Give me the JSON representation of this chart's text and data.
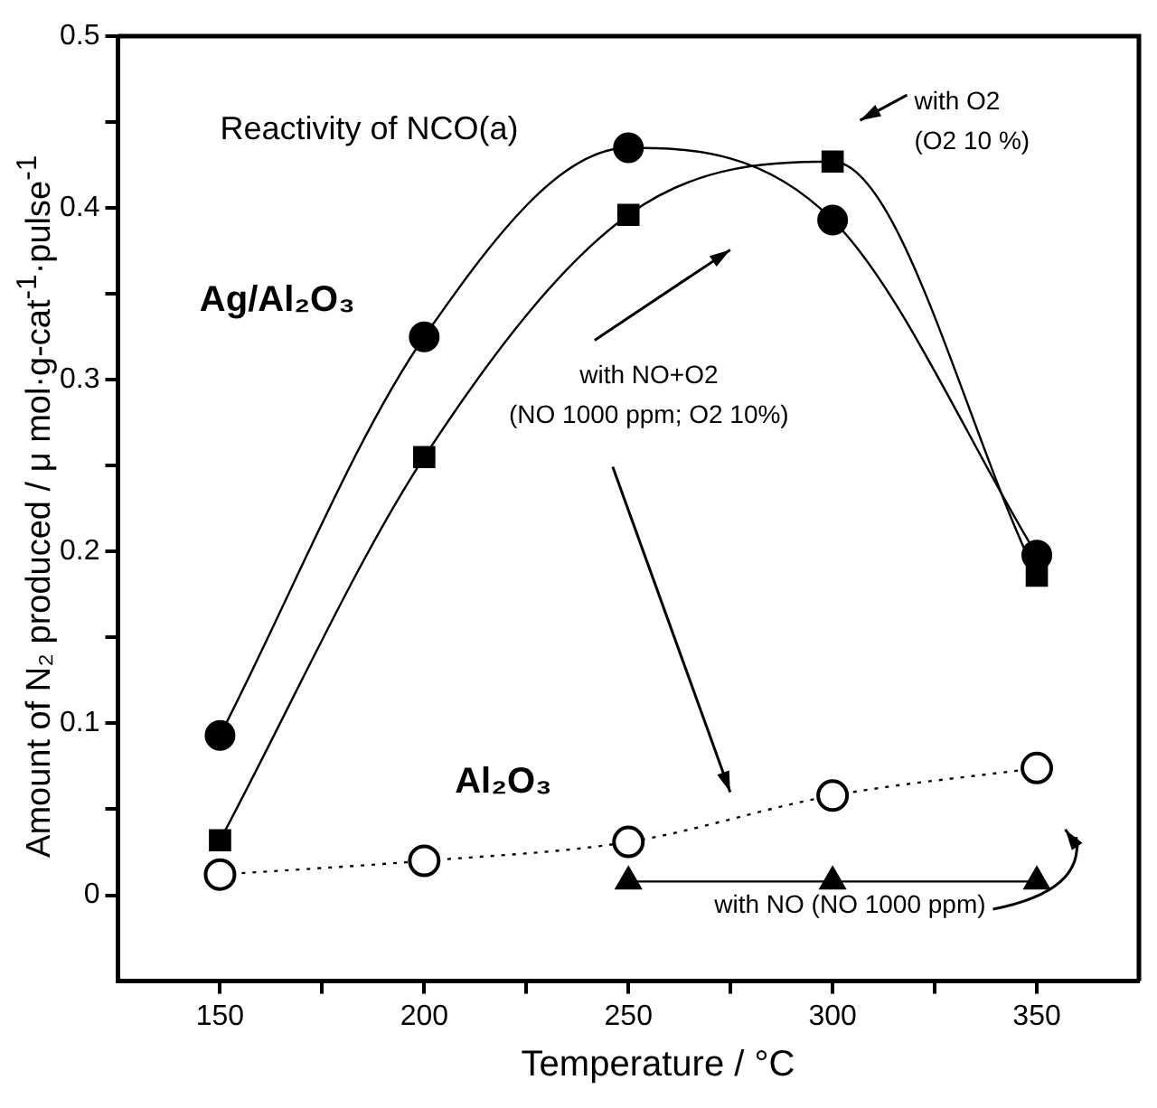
{
  "chart_data": {
    "type": "line",
    "xlabel": "Temperature   / °C",
    "ylabel": "Amount of N₂ produced   / μ mol·g-cat$^{-1}$·pulse$^{-1}$",
    "x": [
      150,
      200,
      250,
      300,
      350
    ],
    "xlim": [
      125,
      375
    ],
    "xticks": [
      150,
      {
        "value": 175,
        "label": null
      },
      200,
      {
        "value": 225,
        "label": null
      },
      250,
      {
        "value": 275,
        "label": null
      },
      300,
      {
        "value": 325,
        "label": null
      },
      350
    ],
    "ylim": [
      -0.05,
      0.5
    ],
    "yticks": [
      0,
      {
        "value": 0.05,
        "label": null
      },
      0.1,
      {
        "value": 0.15,
        "label": null
      },
      0.2,
      {
        "value": 0.25,
        "label": null
      },
      0.3,
      {
        "value": 0.35,
        "label": null
      },
      0.4,
      {
        "value": 0.45,
        "label": null
      },
      0.5
    ],
    "grid": false,
    "legend": false,
    "series": [
      {
        "color": "#000000",
        "marker": "circle",
        "line_style": "solid",
        "values": [
          0.093,
          0.325,
          0.435,
          0.393,
          0.198
        ]
      },
      {
        "color": "#000000",
        "marker": "square",
        "line_style": "solid",
        "values": [
          0.032,
          0.255,
          0.396,
          0.427,
          0.186
        ]
      },
      {
        "color": "#000000",
        "marker": "circle",
        "line_style": "dotted",
        "values": [
          0.012,
          0.02,
          0.031,
          0.058,
          0.074
        ]
      },
      {
        "color": "#000000",
        "marker": "triangle",
        "line_style": "solid",
        "values": [
          null,
          null,
          0.008,
          0.008,
          0.008
        ]
      }
    ],
    "annotations": [
      "Reactivity of NCO(a)",
      "Ag/Al₂O₃",
      "Al₂O₃",
      "with O2\n(O2 10 %)",
      "with NO+O2\n(NO 1000 ppm; O2 10%)",
      "with NO (NO 1000 ppm)"
    ]
  }
}
